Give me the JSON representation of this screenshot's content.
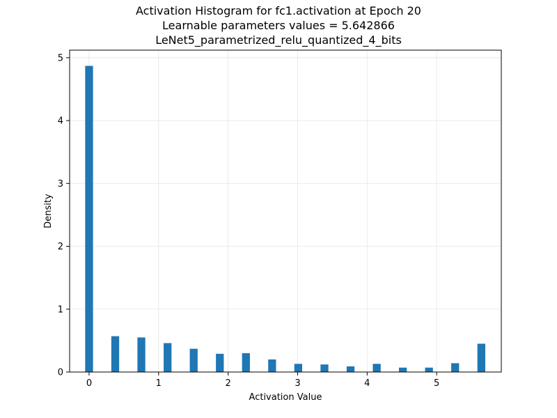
{
  "chart_data": {
    "type": "bar",
    "title": "Activation Histogram for fc1.activation at Epoch 20",
    "subtitle_lines": [
      "Learnable parameters values = 5.642866",
      "LeNet5_parametrized_relu_quantized_4_bits"
    ],
    "xlabel": "Activation Value",
    "ylabel": "Density",
    "xlim": [
      -0.28,
      5.93
    ],
    "ylim": [
      0,
      5.12
    ],
    "xticks": [
      0,
      1,
      2,
      3,
      4,
      5
    ],
    "yticks": [
      0,
      1,
      2,
      3,
      4,
      5
    ],
    "grid": true,
    "bar_width": 0.113,
    "bar_color": "#1f77b4",
    "x": [
      0.0,
      0.376,
      0.752,
      1.129,
      1.505,
      1.881,
      2.257,
      2.633,
      3.009,
      3.386,
      3.762,
      4.138,
      4.514,
      4.89,
      5.266,
      5.643
    ],
    "values": [
      4.87,
      0.57,
      0.55,
      0.46,
      0.37,
      0.29,
      0.3,
      0.2,
      0.13,
      0.12,
      0.09,
      0.13,
      0.07,
      0.07,
      0.14,
      0.45
    ]
  }
}
